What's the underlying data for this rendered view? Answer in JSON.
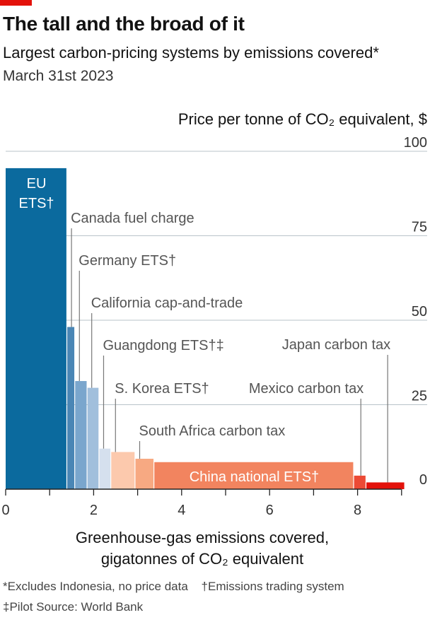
{
  "header": {
    "title": "The tall and the broad of it",
    "subtitle": "Largest carbon-pricing systems by emissions covered*",
    "date": "March 31st 2023"
  },
  "footnotes": {
    "line1_a": "*Excludes Indonesia, no price data",
    "line1_b": "†Emissions trading system",
    "line2": "‡Pilot   Source: World Bank"
  },
  "chart_data": {
    "type": "bar",
    "variant": "variable-width",
    "ylabel": "Price per tonne of CO₂ equivalent, $",
    "xlabel_line1": "Greenhouse-gas emissions covered,",
    "xlabel_line2": "gigatonnes of CO₂ equivalent",
    "ylim": [
      0,
      100
    ],
    "yticks": [
      "0",
      "25",
      "50",
      "75",
      "100"
    ],
    "xlim": [
      0,
      9
    ],
    "xticks": [
      "0",
      "2",
      "4",
      "6",
      "8"
    ],
    "grid": true,
    "series": [
      {
        "label": "EU ETS†",
        "label_line1": "EU",
        "label_line2": "ETS†",
        "width_gt": 1.4,
        "price": 95,
        "color": "#0b6a9e"
      },
      {
        "label": "Canada fuel charge",
        "width_gt": 0.18,
        "price": 48,
        "color": "#4a86b5"
      },
      {
        "label": "Germany ETS†",
        "width_gt": 0.28,
        "price": 32,
        "color": "#7aa6cd"
      },
      {
        "label": "California cap-and-trade",
        "width_gt": 0.27,
        "price": 30,
        "color": "#a1bfdc"
      },
      {
        "label": "Guangdong ETS†‡",
        "width_gt": 0.27,
        "price": 12,
        "color": "#d5e0ee"
      },
      {
        "label": "S. Korea ETS†",
        "width_gt": 0.55,
        "price": 11,
        "color": "#fcc9ad"
      },
      {
        "label": "South Africa carbon tax",
        "width_gt": 0.43,
        "price": 9,
        "color": "#f7a982"
      },
      {
        "label": "China national ETS†",
        "width_gt": 4.54,
        "price": 8,
        "color": "#f2845f"
      },
      {
        "label": "Mexico carbon tax",
        "width_gt": 0.28,
        "price": 4,
        "color": "#ec4a35"
      },
      {
        "label": "Japan carbon tax",
        "width_gt": 0.88,
        "price": 2,
        "color": "#e3120b"
      }
    ]
  }
}
